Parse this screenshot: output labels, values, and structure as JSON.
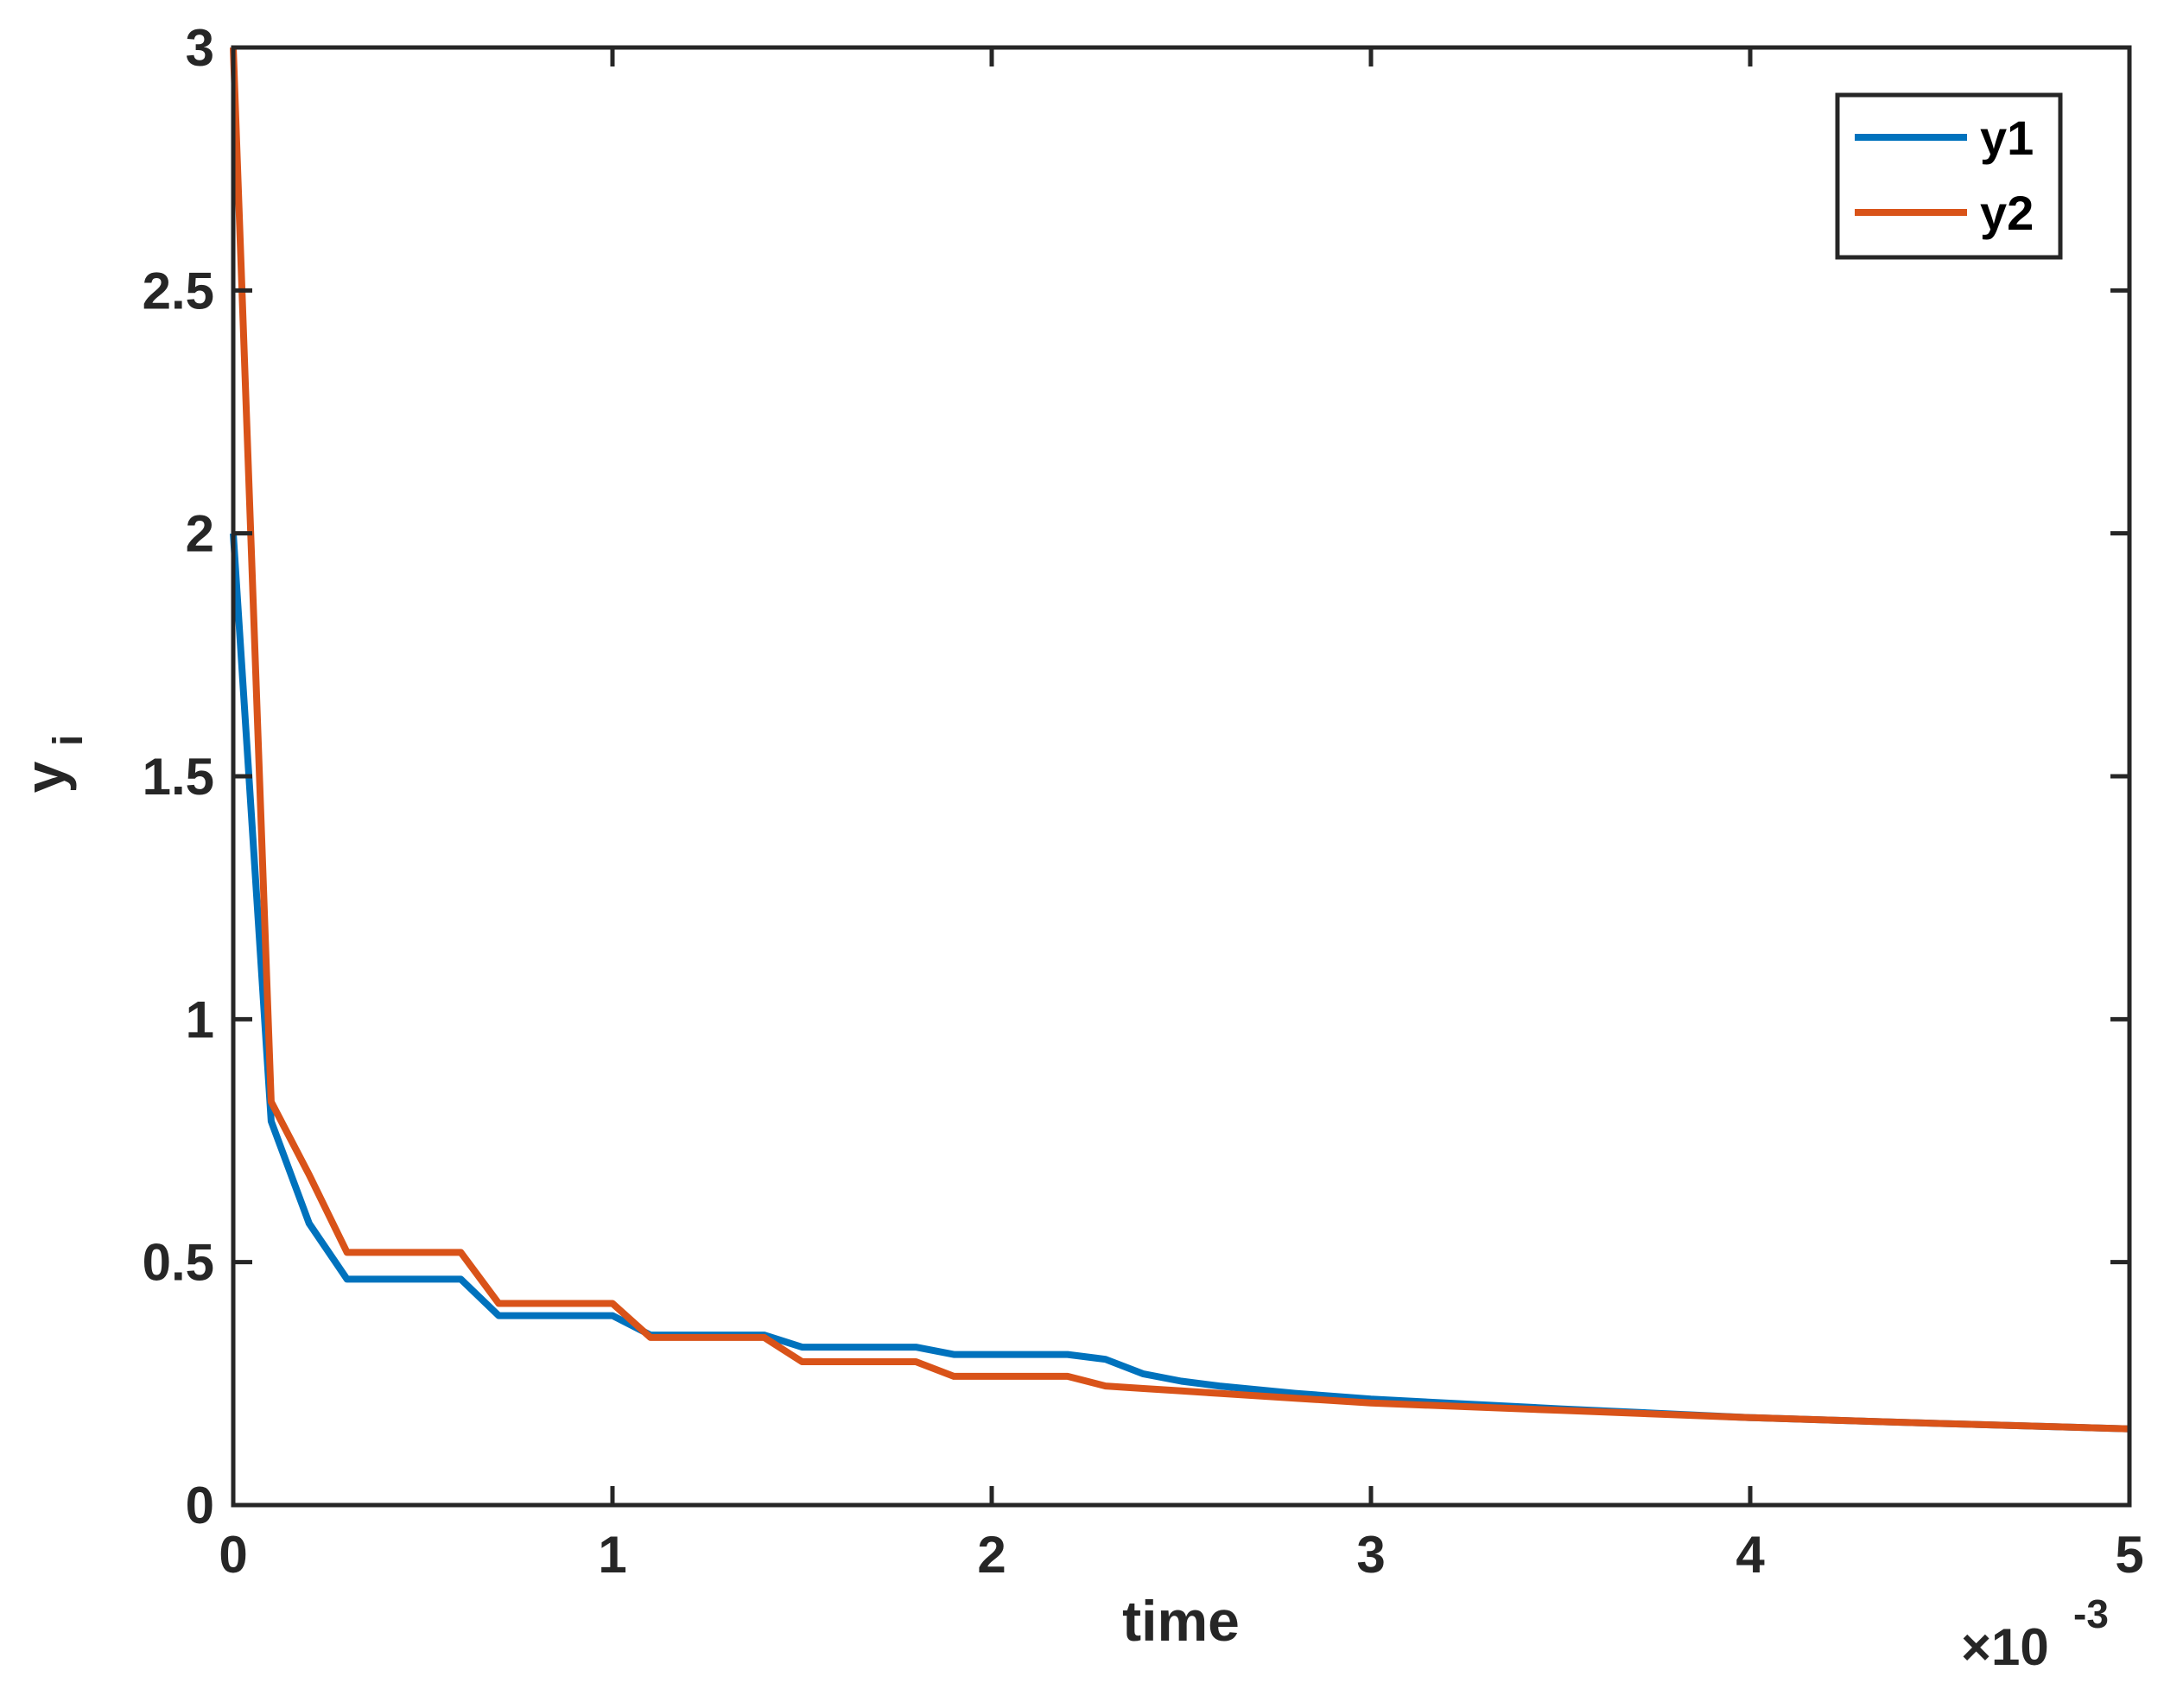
{
  "chart_data": {
    "type": "line",
    "xlabel": "time",
    "ylabel": "y",
    "ylabel_subscript": "i",
    "x_multiplier_label": "×10",
    "x_multiplier_exponent": "-3",
    "xlim": [
      0,
      5
    ],
    "ylim": [
      0,
      3
    ],
    "xticks": [
      "0",
      "1",
      "2",
      "3",
      "4",
      "5"
    ],
    "yticks": [
      "0",
      "0.5",
      "1",
      "1.5",
      "2",
      "2.5",
      "3"
    ],
    "legend_position": "top-right",
    "grid": false,
    "series": [
      {
        "name": "y1",
        "color": "#0072BD",
        "x": [
          0,
          0.1,
          0.2,
          0.3,
          0.4,
          0.5,
          0.6,
          0.7,
          0.8,
          0.9,
          1.0,
          1.1,
          1.2,
          1.3,
          1.4,
          1.5,
          1.6,
          1.7,
          1.8,
          1.9,
          2.0,
          2.1,
          2.2,
          2.3,
          2.4,
          2.5,
          2.6,
          2.8,
          3.0,
          3.5,
          4.0,
          4.5,
          5.0
        ],
        "values": [
          2.0,
          0.79,
          0.58,
          0.465,
          0.465,
          0.465,
          0.465,
          0.39,
          0.39,
          0.39,
          0.39,
          0.35,
          0.35,
          0.35,
          0.35,
          0.325,
          0.325,
          0.325,
          0.325,
          0.31,
          0.31,
          0.31,
          0.31,
          0.3,
          0.27,
          0.255,
          0.245,
          0.23,
          0.218,
          0.198,
          0.18,
          0.168,
          0.157
        ]
      },
      {
        "name": "y2",
        "color": "#D95319",
        "x": [
          0,
          0.1,
          0.2,
          0.3,
          0.4,
          0.5,
          0.6,
          0.7,
          0.8,
          0.9,
          1.0,
          1.1,
          1.2,
          1.3,
          1.4,
          1.5,
          1.6,
          1.7,
          1.8,
          1.9,
          2.0,
          2.1,
          2.2,
          2.3,
          2.4,
          2.5,
          2.6,
          2.8,
          3.0,
          3.5,
          4.0,
          4.5,
          5.0
        ],
        "values": [
          3.0,
          0.83,
          0.68,
          0.52,
          0.52,
          0.52,
          0.52,
          0.415,
          0.415,
          0.415,
          0.415,
          0.345,
          0.345,
          0.345,
          0.345,
          0.295,
          0.295,
          0.295,
          0.295,
          0.265,
          0.265,
          0.265,
          0.265,
          0.245,
          0.24,
          0.235,
          0.23,
          0.22,
          0.21,
          0.195,
          0.18,
          0.168,
          0.157
        ]
      }
    ]
  }
}
